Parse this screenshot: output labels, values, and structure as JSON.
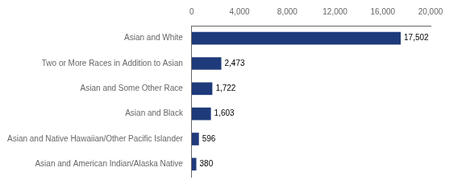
{
  "chart_data": {
    "type": "bar",
    "orientation": "horizontal",
    "categories": [
      "Asian and American Indian/Alaska Native",
      "Asian and Native Hawaiian/Other Pacific Islander",
      "Asian and Black",
      "Asian and Some Other Race",
      "Two or More Races in Addition to Asian",
      "Asian and White"
    ],
    "values": [
      380,
      596,
      1603,
      1722,
      2473,
      17502
    ],
    "value_labels": [
      "380",
      "596",
      "1,603",
      "1,722",
      "2,473",
      "17,502"
    ],
    "data_labels": true,
    "color": "#1F3A7A",
    "xlim": [
      0,
      20000
    ],
    "xticks": [
      0,
      {
        "value": 4000,
        "label": "4,000"
      },
      {
        "value": 8000,
        "label": "8,000"
      },
      {
        "value": 12000,
        "label": "12,000"
      },
      {
        "value": 16000,
        "label": "16,000"
      },
      {
        "value": 20000,
        "label": "20,000"
      }
    ],
    "grid": false
  }
}
